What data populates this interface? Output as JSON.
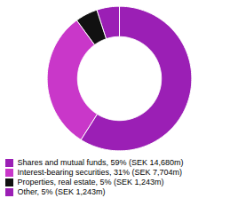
{
  "chart_data": {
    "type": "pie",
    "categories": [
      "Shares and mutual funds, 59% (SEK 14,680m)",
      "Interest-bearing securities, 31% (SEK 7,704m)",
      "Properties, real estate, 5% (SEK 1,243m)",
      "Other, 5% (SEK 1,243m)"
    ],
    "values": [
      59,
      31,
      5,
      5
    ],
    "colors": [
      "#9b1fb5",
      "#c937c9",
      "#111111",
      "#9b1fb5"
    ],
    "legend": "bottom"
  }
}
